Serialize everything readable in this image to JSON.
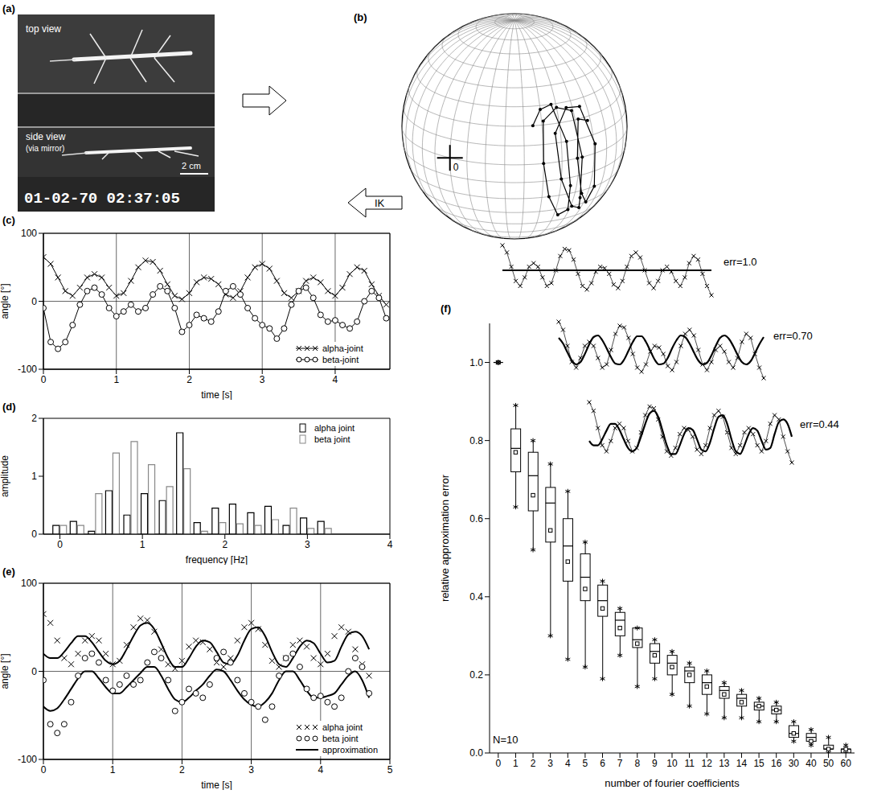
{
  "chart_data": [
    {
      "panel": "(a)",
      "type": "image",
      "top_label": "top view",
      "side_label": "side view",
      "side_note": "(via mirror)",
      "scale_bar": "2 cm",
      "timestamp": "01-02-70 02:37:05"
    },
    {
      "panel": "(b)",
      "type": "sphere",
      "origin_label": "0",
      "arrow_label": "IK",
      "trajectory": {
        "lon": [
          45,
          50,
          57,
          63,
          66,
          69,
          63,
          54,
          50,
          51,
          60,
          69,
          72,
          75,
          78,
          71,
          60,
          57,
          66,
          75,
          81,
          84,
          82,
          75,
          69,
          72,
          78
        ],
        "lat": [
          20,
          28,
          30,
          10,
          -15,
          -32,
          -35,
          -20,
          0,
          22,
          28,
          25,
          0,
          -25,
          -33,
          -30,
          -10,
          15,
          27,
          26,
          5,
          -20,
          -30,
          -22,
          0,
          20,
          18
        ]
      }
    },
    {
      "panel": "(c)",
      "type": "line",
      "x_label": "time [s]",
      "y_label": "angle [°]",
      "grid": true,
      "legend": "lower right",
      "x": [
        0,
        0.1,
        0.2,
        0.3,
        0.4,
        0.5,
        0.6,
        0.7,
        0.8,
        0.9,
        1,
        1.1,
        1.2,
        1.3,
        1.4,
        1.5,
        1.6,
        1.7,
        1.8,
        1.9,
        2,
        2.1,
        2.2,
        2.3,
        2.4,
        2.5,
        2.6,
        2.7,
        2.8,
        2.9,
        3,
        3.1,
        3.2,
        3.3,
        3.4,
        3.5,
        3.6,
        3.7,
        3.8,
        3.9,
        4,
        4.1,
        4.2,
        4.3,
        4.4,
        4.5,
        4.6,
        4.7
      ],
      "xlim": [
        0,
        4.75
      ],
      "xticks": [
        0,
        1,
        2,
        3,
        4
      ],
      "ylim": [
        -100,
        100
      ],
      "yticks": [
        -100,
        0,
        100
      ],
      "series": [
        {
          "name": "alpha-joint",
          "color": "#000000",
          "marker": "x",
          "line_style": "solid",
          "values": [
            65,
            55,
            35,
            15,
            8,
            20,
            35,
            40,
            35,
            20,
            8,
            12,
            30,
            50,
            60,
            58,
            45,
            25,
            8,
            3,
            12,
            28,
            35,
            33,
            25,
            10,
            5,
            15,
            35,
            50,
            55,
            48,
            30,
            12,
            5,
            15,
            30,
            35,
            28,
            15,
            8,
            20,
            40,
            50,
            45,
            25,
            8,
            -5
          ]
        },
        {
          "name": "beta-joint",
          "color": "#000000",
          "marker": "circle",
          "line_style": "solid",
          "values": [
            -10,
            -60,
            -70,
            -60,
            -35,
            -5,
            15,
            20,
            10,
            -10,
            -22,
            -15,
            -5,
            -15,
            -10,
            10,
            22,
            15,
            -10,
            -45,
            -35,
            -20,
            -25,
            -30,
            -15,
            15,
            22,
            10,
            -10,
            -25,
            -35,
            -40,
            -55,
            -40,
            -5,
            15,
            20,
            5,
            -20,
            -30,
            -28,
            -35,
            -40,
            -30,
            0,
            15,
            5,
            -25
          ]
        }
      ]
    },
    {
      "panel": "(d)",
      "type": "bar",
      "x_label": "frequency [Hz]",
      "y_label": "amplitude",
      "legend": "upper right",
      "x": [
        0,
        0.21,
        0.43,
        0.64,
        0.86,
        1.07,
        1.29,
        1.5,
        1.71,
        1.93,
        2.14,
        2.36,
        2.57,
        2.79,
        3,
        3.21
      ],
      "xlim": [
        -0.2,
        4
      ],
      "xticks": [
        0,
        1,
        2,
        3,
        4
      ],
      "ylim": [
        0,
        2
      ],
      "yticks": [
        0,
        1,
        2
      ],
      "series": [
        {
          "name": "alpha joint",
          "color": "#000000",
          "values": [
            0.15,
            0.22,
            0.05,
            0.75,
            0.33,
            0.7,
            0.58,
            1.75,
            0.2,
            0.45,
            0.52,
            0.37,
            0.48,
            0.15,
            0.28,
            0.22
          ]
        },
        {
          "name": "beta joint",
          "color": "#888888",
          "values": [
            0.15,
            0.15,
            0.7,
            1.4,
            1.6,
            1.2,
            0.82,
            1.13,
            0.05,
            0.2,
            0.18,
            0.15,
            0.25,
            0.45,
            0.1,
            0.1
          ]
        }
      ]
    },
    {
      "panel": "(e)",
      "type": "line",
      "x_label": "time [s]",
      "y_label": "angle [°]",
      "grid": true,
      "legend": "lower right",
      "x": [
        0,
        0.1,
        0.2,
        0.3,
        0.4,
        0.5,
        0.6,
        0.7,
        0.8,
        0.9,
        1,
        1.1,
        1.2,
        1.3,
        1.4,
        1.5,
        1.6,
        1.7,
        1.8,
        1.9,
        2,
        2.1,
        2.2,
        2.3,
        2.4,
        2.5,
        2.6,
        2.7,
        2.8,
        2.9,
        3,
        3.1,
        3.2,
        3.3,
        3.4,
        3.5,
        3.6,
        3.7,
        3.8,
        3.9,
        4,
        4.1,
        4.2,
        4.3,
        4.4,
        4.5,
        4.6,
        4.7
      ],
      "xlim": [
        0,
        5
      ],
      "xticks": [
        0,
        1,
        2,
        3,
        4,
        5
      ],
      "ylim": [
        -100,
        100
      ],
      "yticks": [
        -100,
        0,
        100
      ],
      "series": [
        {
          "name": "alpha joint",
          "color": "#000000",
          "marker": "x",
          "line_style": "none",
          "values": [
            65,
            55,
            35,
            15,
            8,
            20,
            35,
            40,
            35,
            20,
            8,
            12,
            30,
            50,
            60,
            58,
            45,
            25,
            8,
            3,
            12,
            28,
            35,
            33,
            25,
            10,
            5,
            15,
            35,
            50,
            55,
            48,
            30,
            12,
            5,
            15,
            30,
            35,
            28,
            15,
            8,
            20,
            40,
            50,
            45,
            25,
            8,
            -5
          ]
        },
        {
          "name": "beta joint",
          "color": "#000000",
          "marker": "circle",
          "line_style": "none",
          "values": [
            -10,
            -60,
            -70,
            -60,
            -35,
            -5,
            15,
            20,
            10,
            -10,
            -22,
            -15,
            -5,
            -15,
            -10,
            10,
            22,
            15,
            -10,
            -45,
            -35,
            -20,
            -25,
            -30,
            -15,
            15,
            22,
            10,
            -10,
            -25,
            -35,
            -40,
            -55,
            -40,
            -5,
            15,
            20,
            5,
            -20,
            -30,
            -28,
            -35,
            -40,
            -30,
            0,
            15,
            5,
            -25
          ]
        },
        {
          "name": "approximation",
          "color": "#000000",
          "marker": "none",
          "line_style": "solid",
          "values": [
            20,
            15,
            15,
            22,
            32,
            40,
            40,
            33,
            22,
            12,
            8,
            12,
            25,
            40,
            52,
            55,
            48,
            32,
            15,
            5,
            5,
            15,
            28,
            35,
            33,
            22,
            10,
            8,
            18,
            35,
            48,
            50,
            40,
            22,
            8,
            5,
            15,
            28,
            35,
            32,
            20,
            10,
            12,
            28,
            42,
            45,
            40,
            25
          ]
        },
        {
          "name": "approximation",
          "color": "#000000",
          "marker": "none",
          "line_style": "solid",
          "values": [
            -40,
            -45,
            -42,
            -32,
            -20,
            -8,
            0,
            0,
            -8,
            -18,
            -25,
            -25,
            -18,
            -10,
            -2,
            5,
            5,
            -5,
            -20,
            -32,
            -35,
            -30,
            -22,
            -15,
            -5,
            2,
            0,
            -10,
            -22,
            -32,
            -38,
            -40,
            -35,
            -25,
            -10,
            0,
            0,
            -10,
            -22,
            -30,
            -30,
            -28,
            -25,
            -15,
            -5,
            0,
            -10,
            -30
          ]
        }
      ]
    },
    {
      "panel": "(f)",
      "type": "box",
      "x_label": "number of fourier coefficients",
      "y_label": "relative approximation error",
      "annotation": "N=10",
      "categories": [
        0,
        1,
        2,
        3,
        4,
        5,
        6,
        7,
        8,
        9,
        10,
        11,
        12,
        13,
        14,
        15,
        16,
        30,
        40,
        50,
        60
      ],
      "ylim": [
        0,
        1.1
      ],
      "yticks": [
        {
          "value": 0,
          "label": "0.0"
        },
        0.2,
        0.4,
        0.6,
        0.8,
        {
          "value": 1,
          "label": "1.0"
        }
      ],
      "max": [
        1,
        0.89,
        0.8,
        0.74,
        0.67,
        0.54,
        0.44,
        0.37,
        0.32,
        0.29,
        0.26,
        0.23,
        0.21,
        0.18,
        0.16,
        0.14,
        0.13,
        0.08,
        0.06,
        0.04,
        0.02
      ],
      "q3": [
        1,
        0.83,
        0.77,
        0.68,
        0.6,
        0.51,
        0.43,
        0.36,
        0.32,
        0.28,
        0.25,
        0.22,
        0.2,
        0.17,
        0.15,
        0.13,
        0.12,
        0.07,
        0.05,
        0.02,
        0.01
      ],
      "median": [
        1,
        0.78,
        0.71,
        0.64,
        0.53,
        0.45,
        0.39,
        0.34,
        0.29,
        0.26,
        0.23,
        0.21,
        0.18,
        0.16,
        0.14,
        0.12,
        0.11,
        0.05,
        0.04,
        0.01,
        0.01
      ],
      "mean": [
        1,
        0.77,
        0.66,
        0.57,
        0.49,
        0.42,
        0.37,
        0.32,
        0.28,
        0.25,
        0.22,
        0.2,
        0.17,
        0.15,
        0.13,
        0.12,
        0.11,
        0.05,
        0.03,
        0.01,
        0.01
      ],
      "q1": [
        1,
        0.72,
        0.62,
        0.54,
        0.44,
        0.39,
        0.35,
        0.3,
        0.27,
        0.23,
        0.2,
        0.18,
        0.15,
        0.14,
        0.12,
        0.11,
        0.1,
        0.04,
        0.03,
        0.01,
        0
      ],
      "min": [
        1,
        0.63,
        0.52,
        0.3,
        0.24,
        0.22,
        0.19,
        0.25,
        0.17,
        0.19,
        0.15,
        0.12,
        0.1,
        0.09,
        0.09,
        0.08,
        0.08,
        0.03,
        0.02,
        0,
        0
      ],
      "insets": [
        {
          "label": "err=1.0",
          "approximation": [
            30,
            30,
            30,
            30,
            30,
            30,
            30,
            30,
            30,
            30,
            30,
            30,
            30,
            30,
            30,
            30,
            30,
            30,
            30,
            30,
            30,
            30,
            30,
            30,
            30,
            30,
            30,
            30,
            30,
            30,
            30,
            30,
            30,
            30,
            30,
            30,
            30,
            30,
            30,
            30,
            30,
            30,
            30,
            30,
            30,
            30,
            30,
            30
          ]
        },
        {
          "label": "err=0.70",
          "approximation": [
            45,
            38,
            27,
            17,
            12,
            15,
            25,
            37,
            46,
            48,
            42,
            32,
            21,
            13,
            12,
            18,
            29,
            40,
            47,
            47,
            40,
            29,
            18,
            12,
            13,
            20,
            32,
            42,
            48,
            46,
            38,
            27,
            17,
            12,
            14,
            23,
            35,
            45,
            48,
            44,
            35,
            24,
            15,
            12,
            16,
            26,
            37,
            46
          ]
        },
        {
          "label": "err=0.44",
          "approximation": [
            20,
            15,
            15,
            22,
            32,
            40,
            40,
            33,
            22,
            12,
            8,
            12,
            25,
            40,
            52,
            55,
            48,
            32,
            15,
            5,
            5,
            15,
            28,
            35,
            33,
            22,
            10,
            8,
            18,
            35,
            48,
            50,
            40,
            22,
            8,
            5,
            15,
            28,
            35,
            32,
            20,
            10,
            12,
            28,
            42,
            45,
            40,
            25
          ]
        }
      ]
    }
  ]
}
